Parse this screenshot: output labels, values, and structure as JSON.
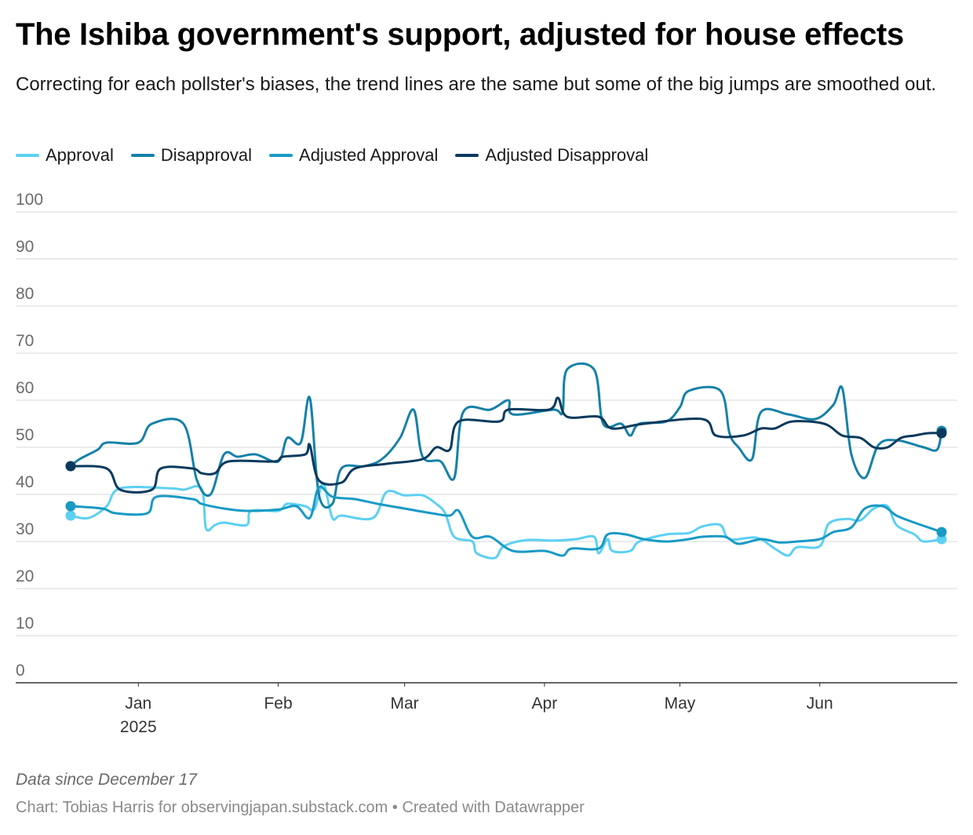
{
  "title": "The Ishiba government's support, adjusted for house effects",
  "subtitle": "Correcting for each pollster's biases, the trend lines are the same but some of the big jumps are smoothed out.",
  "notes": "Data since December 17",
  "footer": {
    "source": "Chart: Tobias Harris for observingjapan.substack.com",
    "separator": "•",
    "credit": "Created with Datawrapper"
  },
  "colors": {
    "approval": "#5dd0f2",
    "disapproval": "#1681a8",
    "adjusted_approval": "#199ac5",
    "adjusted_disapproval": "#093a5d",
    "grid": "#d9d9d9",
    "axis": "#333333",
    "tick_text": "#6b6b6b"
  },
  "chart_data": {
    "type": "line",
    "title": "The Ishiba government's support, adjusted for house effects",
    "subtitle": "Correcting for each pollster's biases, the trend lines are the same but some of the big jumps are smoothed out.",
    "xlabel": "",
    "ylabel": "",
    "ylim": [
      0,
      100
    ],
    "yticks": [
      "0",
      "10",
      "20",
      "30",
      "40",
      "50",
      "60",
      "70",
      "80",
      "90",
      "100"
    ],
    "xlim": [
      "2024-12-17",
      "2025-06-28"
    ],
    "xticks": [
      {
        "date": "2025-01-01",
        "label": "Jan",
        "sublabel": "2025"
      },
      {
        "date": "2025-02-01",
        "label": "Feb",
        "sublabel": ""
      },
      {
        "date": "2025-03-01",
        "label": "Mar",
        "sublabel": ""
      },
      {
        "date": "2025-04-01",
        "label": "Apr",
        "sublabel": ""
      },
      {
        "date": "2025-05-01",
        "label": "May",
        "sublabel": ""
      },
      {
        "date": "2025-06-01",
        "label": "Jun",
        "sublabel": ""
      }
    ],
    "grid": true,
    "legend_position": "top-left",
    "series": [
      {
        "name": "Approval",
        "color_key": "approval",
        "points": [
          [
            "2024-12-17",
            35.5
          ],
          [
            "2024-12-21",
            35.0
          ],
          [
            "2024-12-25",
            37.5
          ],
          [
            "2024-12-28",
            41.3
          ],
          [
            "2025-01-08",
            41.3
          ],
          [
            "2025-01-11",
            41.0
          ],
          [
            "2025-01-15",
            41.2
          ],
          [
            "2025-01-16",
            32.8
          ],
          [
            "2025-01-18",
            33.5
          ],
          [
            "2025-01-20",
            34.0
          ],
          [
            "2025-01-25",
            33.5
          ],
          [
            "2025-01-26",
            36.5
          ],
          [
            "2025-02-01",
            36.5
          ],
          [
            "2025-02-03",
            38.0
          ],
          [
            "2025-02-07",
            37.5
          ],
          [
            "2025-02-09",
            36.8
          ],
          [
            "2025-02-11",
            42.2
          ],
          [
            "2025-02-13",
            35.0
          ],
          [
            "2025-02-15",
            35.5
          ],
          [
            "2025-02-22",
            35.0
          ],
          [
            "2025-02-25",
            40.5
          ],
          [
            "2025-03-01",
            39.8
          ],
          [
            "2025-03-05",
            39.8
          ],
          [
            "2025-03-08",
            38.0
          ],
          [
            "2025-03-10",
            36.0
          ],
          [
            "2025-03-12",
            31.0
          ],
          [
            "2025-03-16",
            30.0
          ],
          [
            "2025-03-17",
            27.5
          ],
          [
            "2025-03-21",
            26.5
          ],
          [
            "2025-03-23",
            29.0
          ],
          [
            "2025-03-28",
            30.3
          ],
          [
            "2025-04-03",
            30.2
          ],
          [
            "2025-04-08",
            30.5
          ],
          [
            "2025-04-12",
            31.0
          ],
          [
            "2025-04-13",
            27.5
          ],
          [
            "2025-04-15",
            30.5
          ],
          [
            "2025-04-16",
            28.0
          ],
          [
            "2025-04-20",
            28.0
          ],
          [
            "2025-04-22",
            30.0
          ],
          [
            "2025-04-28",
            31.5
          ],
          [
            "2025-05-03",
            31.8
          ],
          [
            "2025-05-06",
            33.2
          ],
          [
            "2025-05-10",
            33.5
          ],
          [
            "2025-05-12",
            30.5
          ],
          [
            "2025-05-18",
            30.8
          ],
          [
            "2025-05-22",
            28.5
          ],
          [
            "2025-05-25",
            27.0
          ],
          [
            "2025-05-27",
            28.8
          ],
          [
            "2025-06-01",
            29.0
          ],
          [
            "2025-06-03",
            33.8
          ],
          [
            "2025-06-07",
            34.8
          ],
          [
            "2025-06-10",
            34.5
          ],
          [
            "2025-06-13",
            37.0
          ],
          [
            "2025-06-16",
            37.5
          ],
          [
            "2025-06-18",
            33.5
          ],
          [
            "2025-06-22",
            31.5
          ],
          [
            "2025-06-24",
            30.0
          ],
          [
            "2025-06-28",
            30.5
          ]
        ]
      },
      {
        "name": "Disapproval",
        "color_key": "disapproval",
        "points": [
          [
            "2024-12-17",
            46.0
          ],
          [
            "2024-12-19",
            47.5
          ],
          [
            "2024-12-23",
            49.5
          ],
          [
            "2024-12-25",
            51.0
          ],
          [
            "2025-01-01",
            51.0
          ],
          [
            "2025-01-04",
            55.0
          ],
          [
            "2025-01-11",
            55.0
          ],
          [
            "2025-01-14",
            43.0
          ],
          [
            "2025-01-17",
            40.0
          ],
          [
            "2025-01-20",
            48.5
          ],
          [
            "2025-01-23",
            48.0
          ],
          [
            "2025-01-27",
            48.5
          ],
          [
            "2025-02-01",
            47.0
          ],
          [
            "2025-02-03",
            52.0
          ],
          [
            "2025-02-06",
            51.0
          ],
          [
            "2025-02-08",
            60.5
          ],
          [
            "2025-02-10",
            40.0
          ],
          [
            "2025-02-13",
            38.0
          ],
          [
            "2025-02-15",
            45.5
          ],
          [
            "2025-02-20",
            46.0
          ],
          [
            "2025-02-24",
            47.5
          ],
          [
            "2025-02-28",
            52.0
          ],
          [
            "2025-03-03",
            58.0
          ],
          [
            "2025-03-05",
            48.0
          ],
          [
            "2025-03-09",
            47.0
          ],
          [
            "2025-03-12",
            43.5
          ],
          [
            "2025-03-14",
            57.5
          ],
          [
            "2025-03-20",
            58.0
          ],
          [
            "2025-03-24",
            60.0
          ],
          [
            "2025-03-25",
            57.0
          ],
          [
            "2025-04-03",
            58.0
          ],
          [
            "2025-04-05",
            57.5
          ],
          [
            "2025-04-06",
            66.5
          ],
          [
            "2025-04-12",
            66.5
          ],
          [
            "2025-04-14",
            55.0
          ],
          [
            "2025-04-18",
            55.0
          ],
          [
            "2025-04-20",
            52.5
          ],
          [
            "2025-04-22",
            55.0
          ],
          [
            "2025-04-28",
            55.5
          ],
          [
            "2025-05-01",
            58.5
          ],
          [
            "2025-05-03",
            62.0
          ],
          [
            "2025-05-10",
            62.0
          ],
          [
            "2025-05-12",
            53.0
          ],
          [
            "2025-05-14",
            50.0
          ],
          [
            "2025-05-17",
            47.5
          ],
          [
            "2025-05-19",
            57.5
          ],
          [
            "2025-05-25",
            57.0
          ],
          [
            "2025-05-31",
            56.0
          ],
          [
            "2025-06-04",
            59.0
          ],
          [
            "2025-06-06",
            62.5
          ],
          [
            "2025-06-08",
            48.5
          ],
          [
            "2025-06-11",
            43.5
          ],
          [
            "2025-06-14",
            50.5
          ],
          [
            "2025-06-18",
            51.5
          ],
          [
            "2025-06-24",
            50.0
          ],
          [
            "2025-06-27",
            49.5
          ],
          [
            "2025-06-28",
            53.5
          ]
        ]
      },
      {
        "name": "Adjusted Approval",
        "color_key": "adjusted_approval",
        "points": [
          [
            "2024-12-17",
            37.5
          ],
          [
            "2024-12-24",
            37.0
          ],
          [
            "2024-12-27",
            36.0
          ],
          [
            "2025-01-03",
            36.0
          ],
          [
            "2025-01-05",
            39.5
          ],
          [
            "2025-01-13",
            39.0
          ],
          [
            "2025-01-15",
            38.0
          ],
          [
            "2025-01-20",
            37.0
          ],
          [
            "2025-01-25",
            36.5
          ],
          [
            "2025-02-01",
            36.8
          ],
          [
            "2025-02-05",
            37.5
          ],
          [
            "2025-02-08",
            35.0
          ],
          [
            "2025-02-10",
            41.5
          ],
          [
            "2025-02-13",
            39.5
          ],
          [
            "2025-02-18",
            39.0
          ],
          [
            "2025-02-23",
            38.0
          ],
          [
            "2025-03-01",
            37.0
          ],
          [
            "2025-03-07",
            36.0
          ],
          [
            "2025-03-11",
            35.5
          ],
          [
            "2025-03-13",
            36.5
          ],
          [
            "2025-03-16",
            31.0
          ],
          [
            "2025-03-20",
            31.0
          ],
          [
            "2025-03-25",
            28.0
          ],
          [
            "2025-04-01",
            28.0
          ],
          [
            "2025-04-05",
            27.0
          ],
          [
            "2025-04-07",
            28.5
          ],
          [
            "2025-04-13",
            28.5
          ],
          [
            "2025-04-15",
            31.5
          ],
          [
            "2025-04-19",
            31.5
          ],
          [
            "2025-04-23",
            30.5
          ],
          [
            "2025-04-28",
            30.0
          ],
          [
            "2025-05-03",
            30.5
          ],
          [
            "2025-05-06",
            31.0
          ],
          [
            "2025-05-11",
            31.0
          ],
          [
            "2025-05-14",
            29.5
          ],
          [
            "2025-05-19",
            30.5
          ],
          [
            "2025-05-23",
            29.8
          ],
          [
            "2025-05-27",
            30.0
          ],
          [
            "2025-06-01",
            30.5
          ],
          [
            "2025-06-04",
            32.0
          ],
          [
            "2025-06-08",
            33.0
          ],
          [
            "2025-06-11",
            37.0
          ],
          [
            "2025-06-15",
            37.5
          ],
          [
            "2025-06-18",
            35.5
          ],
          [
            "2025-06-22",
            34.0
          ],
          [
            "2025-06-25",
            33.0
          ],
          [
            "2025-06-28",
            32.0
          ]
        ]
      },
      {
        "name": "Adjusted Disapproval",
        "color_key": "adjusted_disapproval",
        "points": [
          [
            "2024-12-17",
            46.0
          ],
          [
            "2024-12-25",
            45.5
          ],
          [
            "2024-12-28",
            41.0
          ],
          [
            "2025-01-04",
            41.0
          ],
          [
            "2025-01-06",
            45.5
          ],
          [
            "2025-01-13",
            45.5
          ],
          [
            "2025-01-15",
            44.5
          ],
          [
            "2025-01-18",
            44.5
          ],
          [
            "2025-01-21",
            47.0
          ],
          [
            "2025-01-31",
            47.0
          ],
          [
            "2025-02-02",
            48.0
          ],
          [
            "2025-02-07",
            48.5
          ],
          [
            "2025-02-08",
            50.5
          ],
          [
            "2025-02-10",
            43.0
          ],
          [
            "2025-02-15",
            42.5
          ],
          [
            "2025-02-18",
            45.5
          ],
          [
            "2025-02-25",
            46.5
          ],
          [
            "2025-03-05",
            47.5
          ],
          [
            "2025-03-08",
            50.0
          ],
          [
            "2025-03-11",
            49.5
          ],
          [
            "2025-03-13",
            55.5
          ],
          [
            "2025-03-22",
            55.5
          ],
          [
            "2025-03-24",
            58.0
          ],
          [
            "2025-04-02",
            58.0
          ],
          [
            "2025-04-04",
            60.5
          ],
          [
            "2025-04-06",
            56.5
          ],
          [
            "2025-04-13",
            56.5
          ],
          [
            "2025-04-16",
            54.0
          ],
          [
            "2025-04-23",
            55.0
          ],
          [
            "2025-05-06",
            56.0
          ],
          [
            "2025-05-09",
            52.5
          ],
          [
            "2025-05-15",
            52.5
          ],
          [
            "2025-05-19",
            54.0
          ],
          [
            "2025-05-22",
            54.0
          ],
          [
            "2025-05-26",
            55.5
          ],
          [
            "2025-06-02",
            55.0
          ],
          [
            "2025-06-06",
            52.5
          ],
          [
            "2025-06-10",
            52.0
          ],
          [
            "2025-06-13",
            50.0
          ],
          [
            "2025-06-16",
            50.0
          ],
          [
            "2025-06-19",
            52.0
          ],
          [
            "2025-06-22",
            52.5
          ],
          [
            "2025-06-25",
            53.0
          ],
          [
            "2025-06-28",
            53.0
          ]
        ]
      }
    ]
  }
}
